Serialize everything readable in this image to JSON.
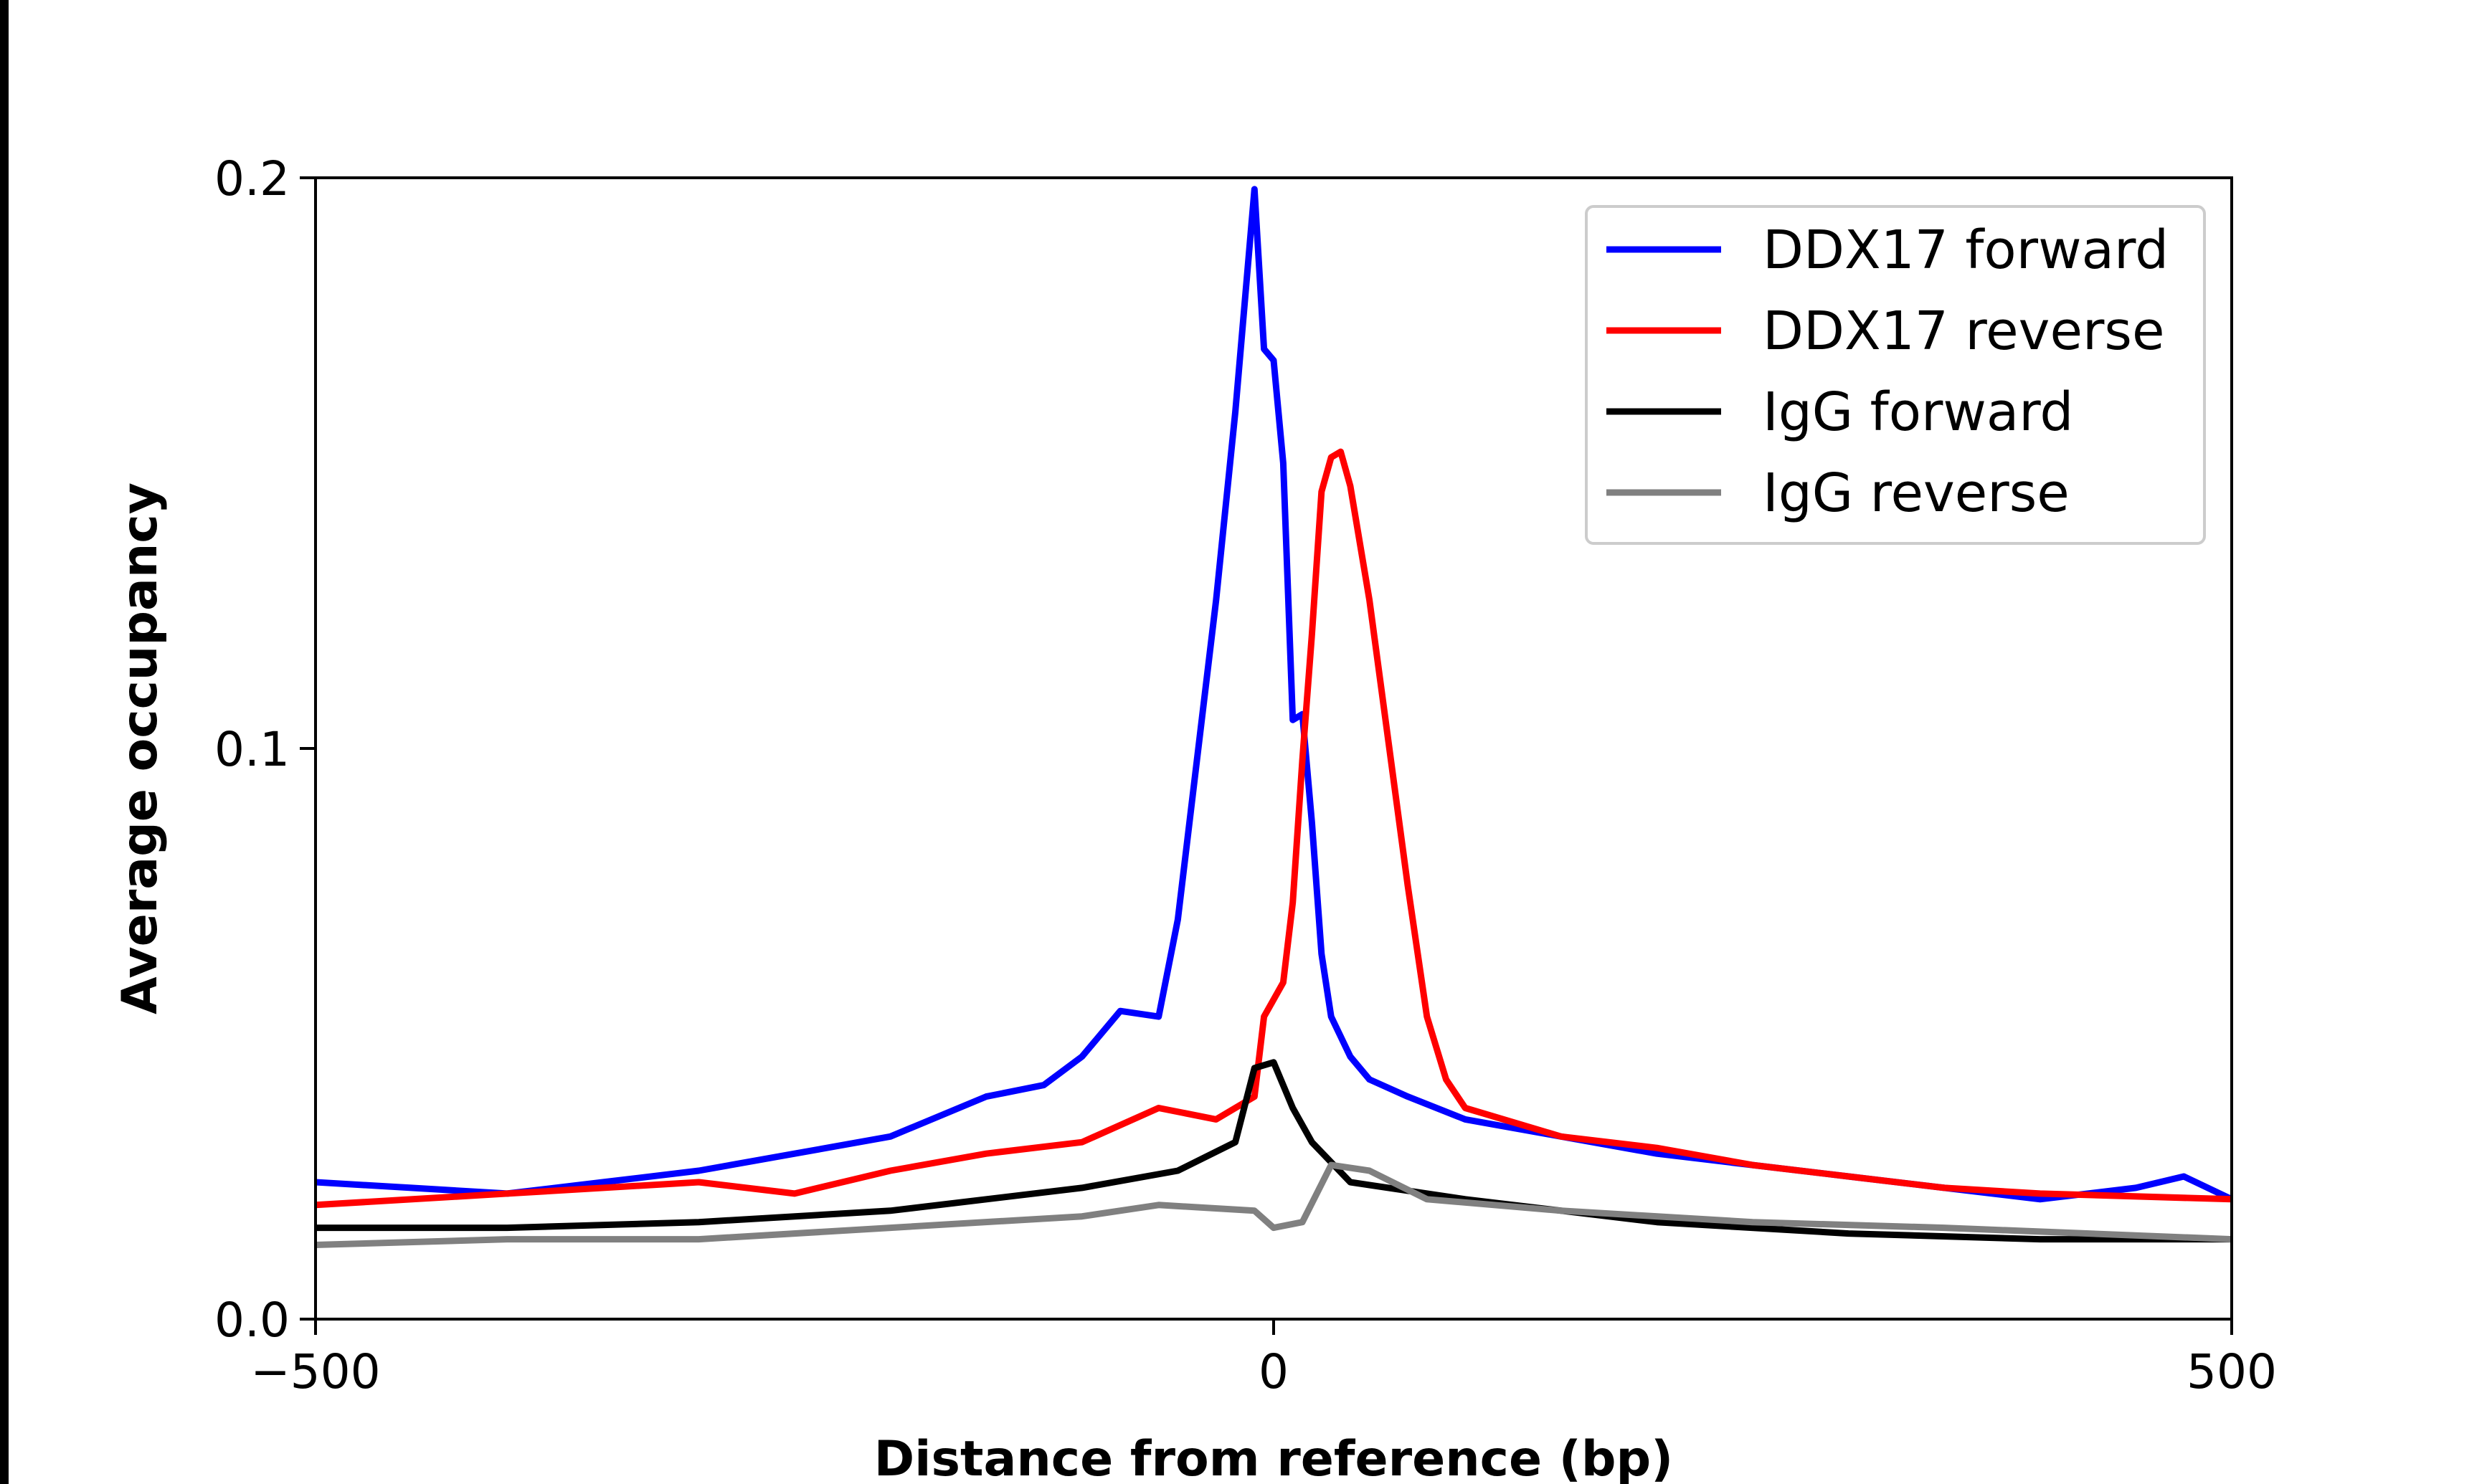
{
  "chart_data": {
    "type": "line",
    "title": "",
    "xlabel": "Distance from reference (bp)",
    "ylabel": "Average occupancy",
    "xlim": [
      -500,
      500
    ],
    "ylim": [
      0,
      0.2
    ],
    "xticks": [
      {
        "value": -500,
        "label": "−500"
      },
      {
        "value": 0,
        "label": "0"
      },
      {
        "value": 500,
        "label": "500"
      }
    ],
    "yticks": [
      {
        "value": 0,
        "label": "0.0"
      },
      {
        "value": 0.1,
        "label": "0.1"
      },
      {
        "value": 0.2,
        "label": "0.2"
      }
    ],
    "grid": false,
    "legend_placement": "top-right",
    "series": [
      {
        "name": "DDX17 forward",
        "color": "#0000ff",
        "x": [
          -500,
          -450,
          -400,
          -350,
          -300,
          -250,
          -200,
          -150,
          -120,
          -100,
          -80,
          -60,
          -50,
          -40,
          -30,
          -20,
          -10,
          -5,
          0,
          5,
          10,
          15,
          20,
          25,
          30,
          40,
          50,
          70,
          100,
          150,
          200,
          250,
          300,
          350,
          400,
          450,
          475,
          500
        ],
        "y": [
          0.024,
          0.023,
          0.022,
          0.024,
          0.026,
          0.029,
          0.032,
          0.039,
          0.041,
          0.046,
          0.054,
          0.053,
          0.07,
          0.098,
          0.126,
          0.159,
          0.198,
          0.17,
          0.168,
          0.15,
          0.105,
          0.106,
          0.087,
          0.064,
          0.053,
          0.046,
          0.042,
          0.039,
          0.035,
          0.032,
          0.029,
          0.027,
          0.025,
          0.023,
          0.021,
          0.023,
          0.025,
          0.021
        ]
      },
      {
        "name": "DDX17 reverse",
        "color": "#ff0000",
        "x": [
          -500,
          -400,
          -300,
          -250,
          -200,
          -150,
          -100,
          -60,
          -30,
          -10,
          -5,
          5,
          10,
          15,
          20,
          25,
          30,
          35,
          40,
          50,
          60,
          70,
          80,
          90,
          100,
          150,
          200,
          250,
          300,
          350,
          400,
          500
        ],
        "y": [
          0.02,
          0.022,
          0.024,
          0.022,
          0.026,
          0.029,
          0.031,
          0.037,
          0.035,
          0.039,
          0.053,
          0.059,
          0.073,
          0.098,
          0.12,
          0.145,
          0.151,
          0.152,
          0.146,
          0.126,
          0.101,
          0.076,
          0.053,
          0.042,
          0.037,
          0.032,
          0.03,
          0.027,
          0.025,
          0.023,
          0.022,
          0.021
        ]
      },
      {
        "name": "IgG forward",
        "color": "#000000",
        "x": [
          -500,
          -400,
          -300,
          -200,
          -100,
          -50,
          -20,
          -10,
          0,
          10,
          20,
          40,
          100,
          200,
          300,
          400,
          500
        ],
        "y": [
          0.016,
          0.016,
          0.017,
          0.019,
          0.023,
          0.026,
          0.031,
          0.044,
          0.045,
          0.037,
          0.031,
          0.024,
          0.021,
          0.017,
          0.015,
          0.014,
          0.014
        ]
      },
      {
        "name": "IgG reverse",
        "color": "#808080",
        "x": [
          -500,
          -400,
          -300,
          -200,
          -100,
          -60,
          -10,
          0,
          15,
          30,
          50,
          80,
          150,
          250,
          350,
          500
        ],
        "y": [
          0.013,
          0.014,
          0.014,
          0.016,
          0.018,
          0.02,
          0.019,
          0.016,
          0.017,
          0.027,
          0.026,
          0.021,
          0.019,
          0.017,
          0.016,
          0.014
        ]
      }
    ]
  }
}
